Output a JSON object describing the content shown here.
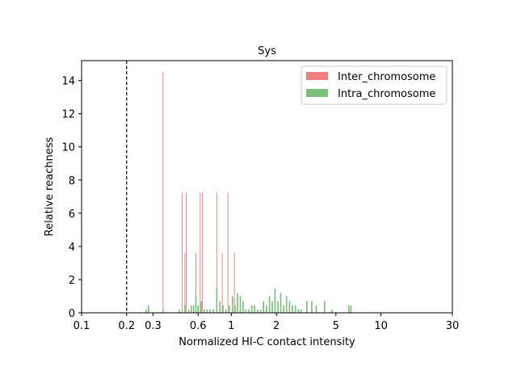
{
  "chart_data": {
    "type": "bar",
    "title": "Sys",
    "xlabel": "Normalized HI-C contact intensity",
    "ylabel": "Relative reachness",
    "xscale": "log",
    "xlim": [
      0.1,
      30
    ],
    "ylim": [
      0,
      15.2
    ],
    "xticks": [
      {
        "value": 0.1,
        "label": "0.1"
      },
      {
        "value": 0.2,
        "label": "0.2"
      },
      {
        "value": 0.3,
        "label": "0.3"
      },
      {
        "value": 0.6,
        "label": "0.6"
      },
      {
        "value": 1,
        "label": "1"
      },
      {
        "value": 2,
        "label": "2"
      },
      {
        "value": 5,
        "label": "5"
      },
      {
        "value": 10,
        "label": "10"
      },
      {
        "value": 30,
        "label": "30"
      }
    ],
    "yticks": [
      {
        "value": 0,
        "label": "0"
      },
      {
        "value": 2,
        "label": "2"
      },
      {
        "value": 4,
        "label": "4"
      },
      {
        "value": 6,
        "label": "6"
      },
      {
        "value": 8,
        "label": "8"
      },
      {
        "value": 10,
        "label": "10"
      },
      {
        "value": 12,
        "label": "12"
      },
      {
        "value": 14,
        "label": "14"
      }
    ],
    "reference_line": {
      "x": 0.2,
      "style": "dashed",
      "color": "#000000"
    },
    "legend_position": "top-right",
    "series": [
      {
        "name": "Inter_chromosome",
        "color": "#f08080",
        "bin_width_log10": 0.005,
        "x": [
          0.35,
          0.47,
          0.49,
          0.5,
          0.58,
          0.62,
          0.64,
          0.8,
          0.87,
          0.95,
          1.05
        ],
        "values": [
          14.5,
          7.25,
          3.6,
          7.25,
          3.6,
          7.25,
          7.25,
          7.25,
          3.6,
          7.25,
          3.6
        ]
      },
      {
        "name": "Intra_chromosome",
        "color": "#7cbf7c",
        "bin_width_log10": 0.009,
        "x": [
          0.27,
          0.28,
          0.35,
          0.45,
          0.49,
          0.52,
          0.54,
          0.56,
          0.58,
          0.6,
          0.63,
          0.66,
          0.69,
          0.72,
          0.76,
          0.8,
          0.84,
          0.88,
          0.92,
          0.97,
          1.02,
          1.06,
          1.1,
          1.15,
          1.2,
          1.25,
          1.31,
          1.37,
          1.43,
          1.5,
          1.57,
          1.64,
          1.72,
          1.8,
          1.88,
          1.96,
          2.05,
          2.14,
          2.24,
          2.34,
          2.45,
          2.56,
          2.68,
          2.8,
          2.92,
          3.2,
          3.45,
          3.7,
          4.2,
          4.7,
          6.1,
          6.3
        ],
        "values": [
          0.2,
          0.45,
          0.2,
          0.2,
          0.45,
          0.2,
          0.45,
          0.45,
          1.0,
          0.45,
          0.7,
          0.2,
          0.2,
          0.2,
          0.2,
          1.5,
          0.7,
          0.45,
          0.2,
          0.45,
          1.0,
          0.45,
          1.2,
          1.0,
          0.7,
          0.2,
          0.2,
          0.45,
          0.45,
          0.2,
          0.2,
          0.7,
          0.45,
          1.0,
          0.7,
          1.45,
          0.7,
          1.2,
          0.45,
          1.0,
          0.7,
          0.45,
          0.45,
          0.2,
          0.2,
          0.7,
          0.7,
          0.45,
          0.7,
          0.2,
          0.45,
          0.45
        ]
      }
    ]
  }
}
